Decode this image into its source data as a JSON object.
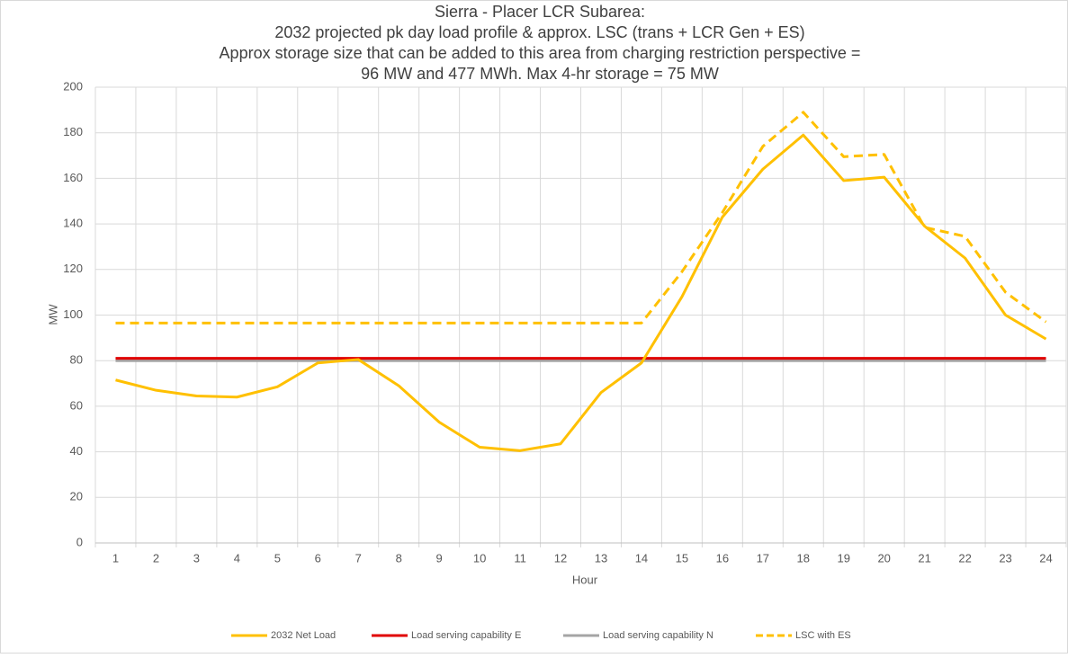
{
  "chart_data": {
    "type": "line",
    "title": [
      "Sierra - Placer LCR Subarea:",
      "2032 projected pk day load profile & approx. LSC (trans + LCR Gen + ES)",
      "Approx storage size that can be added to this area from charging restriction perspective =",
      "96 MW and 477 MWh. Max 4-hr storage = 75 MW"
    ],
    "x_label": "Hour",
    "y_label": "MW",
    "categories": [
      "1",
      "2",
      "3",
      "4",
      "5",
      "6",
      "7",
      "8",
      "9",
      "10",
      "11",
      "12",
      "13",
      "14",
      "15",
      "16",
      "17",
      "18",
      "19",
      "20",
      "21",
      "22",
      "23",
      "24"
    ],
    "series": [
      {
        "name": "2032 Net Load",
        "color": "#ffc000",
        "dash": false,
        "values": [
          71.5,
          67,
          64.5,
          64,
          68.5,
          79,
          80.5,
          69,
          53,
          42,
          40.5,
          43.5,
          66,
          79,
          108,
          143,
          164,
          179,
          159,
          160.5,
          139,
          125,
          100,
          89.5
        ]
      },
      {
        "name": "Load serving capability E",
        "color": "#e00000",
        "dash": false,
        "values": [
          81,
          81,
          81,
          81,
          81,
          81,
          81,
          81,
          81,
          81,
          81,
          81,
          81,
          81,
          81,
          81,
          81,
          81,
          81,
          81,
          81,
          81,
          81,
          81
        ]
      },
      {
        "name": "Load serving capability N",
        "color": "#a5a5a5",
        "dash": false,
        "values": [
          80,
          80,
          80,
          80,
          80,
          80,
          80,
          80,
          80,
          80,
          80,
          80,
          80,
          80,
          80,
          80,
          80,
          80,
          80,
          80,
          80,
          80,
          80,
          80
        ]
      },
      {
        "name": "LSC with ES",
        "color": "#ffc000",
        "dash": true,
        "values": [
          96.5,
          96.5,
          96.5,
          96.5,
          96.5,
          96.5,
          96.5,
          96.5,
          96.5,
          96.5,
          96.5,
          96.5,
          96.5,
          96.5,
          119,
          145,
          174,
          189,
          169.5,
          170.5,
          138.5,
          134.5,
          110,
          97
        ]
      }
    ],
    "ylim": [
      0,
      200
    ],
    "yticks": [
      0,
      20,
      40,
      60,
      80,
      100,
      120,
      140,
      160,
      180,
      200
    ],
    "grid": true,
    "legend": "bottom"
  }
}
